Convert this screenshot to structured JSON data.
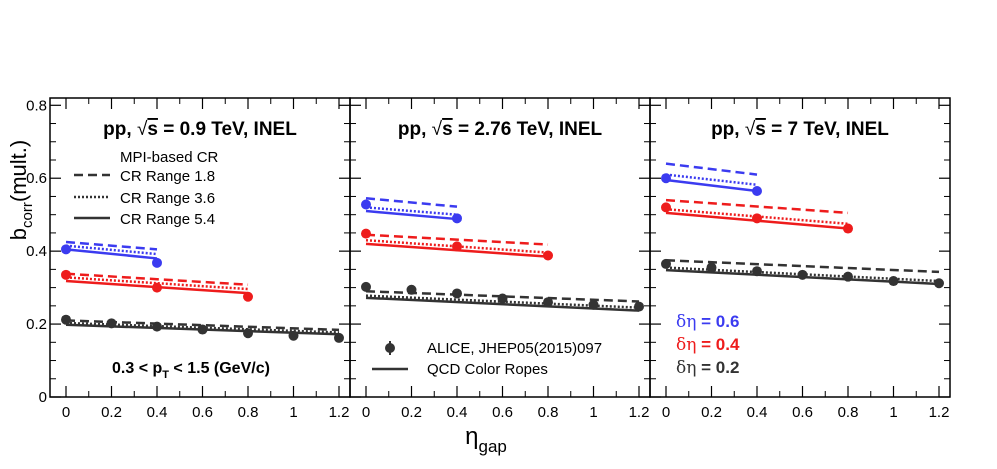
{
  "chart_data": {
    "type": "scatter",
    "ylabel_main": "b",
    "ylabel_sub": "corr",
    "ylabel_tail": "(mult.)",
    "xlabel_main": "η",
    "xlabel_sub": "gap",
    "ylim": [
      0,
      0.82
    ],
    "y_ticks": [
      {
        "value": 0,
        "label": "0"
      },
      {
        "value": 0.2,
        "label": "0.2"
      },
      {
        "value": 0.4,
        "label": "0.4"
      },
      {
        "value": 0.6,
        "label": "0.6"
      },
      {
        "value": 0.8,
        "label": "0.8"
      }
    ],
    "x_ticks": [
      {
        "value": 0,
        "label": "0"
      },
      {
        "value": 0.2,
        "label": "0.2"
      },
      {
        "value": 0.4,
        "label": "0.4"
      },
      {
        "value": 0.6,
        "label": "0.6"
      },
      {
        "value": 0.8,
        "label": "0.8"
      },
      {
        "value": 1,
        "label": "1"
      },
      {
        "value": 1.2,
        "label": "1.2"
      }
    ],
    "colors": {
      "d06": "#3b3bf0",
      "d04": "#ee1c1c",
      "d02": "#333333"
    },
    "legend": {
      "header": "MPI-based CR",
      "dashed": "CR Range 1.8",
      "dotted": "CR Range 3.6",
      "solid": "CR Range 5.4",
      "data": "ALICE, JHEP05(2015)097",
      "model": "QCD Color Ropes"
    },
    "eta_legend": [
      {
        "symbol": "δη",
        "value": " = 0.6",
        "key": "d06"
      },
      {
        "symbol": "δη",
        "value": " = 0.4",
        "key": "d04"
      },
      {
        "symbol": "δη",
        "value": " = 0.2",
        "key": "d02"
      }
    ],
    "pt_label": {
      "a": "0.3 < p",
      "sub": "T",
      "b": " < 1.5 (GeV/c)"
    },
    "panels": [
      {
        "title": {
          "a": "pp, ",
          "root": "√",
          "s": "s",
          "b": " = 0.9 TeV, INEL"
        },
        "series": [
          {
            "key": "d06",
            "name": "δη = 0.6",
            "x": [
              0,
              0.4
            ],
            "y": [
              0.405,
              0.368
            ],
            "solid": [
              0.405,
              0.38
            ],
            "dotted": [
              0.415,
              0.392
            ],
            "dashed": [
              0.425,
              0.405
            ]
          },
          {
            "key": "d04",
            "name": "δη = 0.4",
            "x": [
              0,
              0.4,
              0.8
            ],
            "y": [
              0.335,
              0.3,
              0.275
            ],
            "solid": [
              0.318,
              0.285
            ],
            "dotted": [
              0.328,
              0.296
            ],
            "dashed": [
              0.338,
              0.308
            ]
          },
          {
            "key": "d02",
            "name": "δη = 0.2",
            "x": [
              0,
              0.2,
              0.4,
              0.6,
              0.8,
              1.0,
              1.2
            ],
            "y": [
              0.212,
              0.202,
              0.193,
              0.185,
              0.175,
              0.168,
              0.162
            ],
            "solid": [
              0.198,
              0.172
            ],
            "dotted": [
              0.203,
              0.177
            ],
            "dashed": [
              0.21,
              0.184
            ]
          }
        ]
      },
      {
        "title": {
          "a": "pp, ",
          "root": "√",
          "s": "s",
          "b": " = 2.76 TeV, INEL"
        },
        "series": [
          {
            "key": "d06",
            "name": "δη = 0.6",
            "x": [
              0,
              0.4
            ],
            "y": [
              0.528,
              0.49
            ],
            "solid": [
              0.51,
              0.488
            ],
            "dotted": [
              0.52,
              0.5
            ],
            "dashed": [
              0.545,
              0.522
            ]
          },
          {
            "key": "d04",
            "name": "δη = 0.4",
            "x": [
              0,
              0.4,
              0.8
            ],
            "y": [
              0.448,
              0.413,
              0.388
            ],
            "solid": [
              0.42,
              0.385
            ],
            "dotted": [
              0.43,
              0.396
            ],
            "dashed": [
              0.445,
              0.418
            ]
          },
          {
            "key": "d02",
            "name": "δη = 0.2",
            "x": [
              0,
              0.2,
              0.4,
              0.6,
              0.8,
              1.0,
              1.2
            ],
            "y": [
              0.302,
              0.294,
              0.284,
              0.27,
              0.26,
              0.253,
              0.248
            ],
            "solid": [
              0.272,
              0.237
            ],
            "dotted": [
              0.278,
              0.245
            ],
            "dashed": [
              0.29,
              0.262
            ]
          }
        ]
      },
      {
        "title": {
          "a": "pp, ",
          "root": "√",
          "s": "s",
          "b": " = 7 TeV, INEL"
        },
        "series": [
          {
            "key": "d06",
            "name": "δη = 0.6",
            "x": [
              0,
              0.4
            ],
            "y": [
              0.6,
              0.565
            ],
            "solid": [
              0.595,
              0.565
            ],
            "dotted": [
              0.61,
              0.582
            ],
            "dashed": [
              0.64,
              0.61
            ]
          },
          {
            "key": "d04",
            "name": "δη = 0.4",
            "x": [
              0,
              0.4,
              0.8
            ],
            "y": [
              0.52,
              0.49,
              0.462
            ],
            "solid": [
              0.505,
              0.462
            ],
            "dotted": [
              0.515,
              0.475
            ],
            "dashed": [
              0.54,
              0.505
            ]
          },
          {
            "key": "d02",
            "name": "δη = 0.2",
            "x": [
              0,
              0.2,
              0.4,
              0.6,
              0.8,
              1.0,
              1.2
            ],
            "y": [
              0.365,
              0.355,
              0.345,
              0.335,
              0.33,
              0.318,
              0.312
            ],
            "solid": [
              0.348,
              0.31
            ],
            "dotted": [
              0.355,
              0.318
            ],
            "dashed": [
              0.375,
              0.343
            ]
          }
        ]
      }
    ]
  }
}
